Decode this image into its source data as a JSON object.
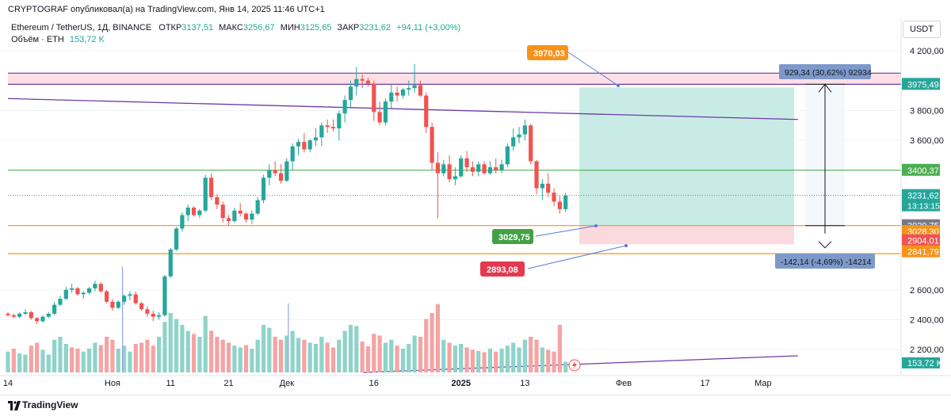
{
  "header": {
    "publisher_line": "CRYPTOGRAF опубликовал(а) на TradingView.com, Янв 14, 2025 11:46 UTC+1"
  },
  "legend": {
    "symbol_line": "Ethereum / TetherUS, 1Д, BINANCE",
    "open_label": "ОТКР",
    "open": "3137,51",
    "high_label": "МАКС",
    "high": "3256,67",
    "low_label": "МИН",
    "low": "3125,65",
    "close_label": "ЗАКР",
    "close": "3231,62",
    "change": "+94,11 (+3,00%)",
    "volume_label": "Объём · ETH",
    "volume": "153,72 K"
  },
  "currency": "USDT",
  "footer": {
    "brand": "TradingView"
  },
  "colors": {
    "up": "#26a69a",
    "down": "#ef5350",
    "up_vol": "#8fd3c9",
    "down_vol": "#f5a3a3",
    "purple": "#6c3ba8",
    "green": "#4caf50",
    "orange": "#f7931a",
    "target_zone": "#c8ebe5",
    "stop_zone": "#fcd9dc",
    "resist_zone": "#fce0e6"
  },
  "chart_data": {
    "type": "candlestick",
    "y_ticks": [
      {
        "v": 4200,
        "t": "4 200,00"
      },
      {
        "v": 3800,
        "t": "3 800,00"
      },
      {
        "v": 3600,
        "t": "3 600,00"
      },
      {
        "v": 2600,
        "t": "2 600,00"
      },
      {
        "v": 2400,
        "t": "2 400,00"
      },
      {
        "v": 2200,
        "t": "2 200,00"
      }
    ],
    "x_ticks": [
      {
        "i": 0,
        "t": "14"
      },
      {
        "i": 18,
        "t": "Ноя"
      },
      {
        "i": 28,
        "t": "11"
      },
      {
        "i": 38,
        "t": "21"
      },
      {
        "i": 48,
        "t": "Дек"
      },
      {
        "i": 63,
        "t": "16"
      },
      {
        "i": 78,
        "t": "2025"
      },
      {
        "i": 89,
        "t": "13"
      },
      {
        "i": 106,
        "t": "Фев"
      },
      {
        "i": 120,
        "t": "17"
      },
      {
        "i": 130,
        "t": "Мар"
      }
    ],
    "candles": [
      [
        2440,
        2450,
        2420,
        2430
      ],
      [
        2430,
        2440,
        2410,
        2420
      ],
      [
        2420,
        2450,
        2410,
        2440
      ],
      [
        2440,
        2470,
        2430,
        2450
      ],
      [
        2450,
        2460,
        2400,
        2410
      ],
      [
        2410,
        2420,
        2370,
        2390
      ],
      [
        2390,
        2430,
        2380,
        2420
      ],
      [
        2420,
        2450,
        2410,
        2440
      ],
      [
        2440,
        2520,
        2430,
        2500
      ],
      [
        2500,
        2560,
        2490,
        2540
      ],
      [
        2540,
        2620,
        2530,
        2600
      ],
      [
        2600,
        2640,
        2580,
        2610
      ],
      [
        2610,
        2620,
        2560,
        2570
      ],
      [
        2570,
        2590,
        2540,
        2580
      ],
      [
        2580,
        2620,
        2570,
        2610
      ],
      [
        2610,
        2660,
        2590,
        2640
      ],
      [
        2640,
        2650,
        2580,
        2590
      ],
      [
        2590,
        2600,
        2510,
        2520
      ],
      [
        2520,
        2540,
        2460,
        2480
      ],
      [
        2480,
        2530,
        2470,
        2520
      ],
      [
        2520,
        2570,
        2500,
        2560
      ],
      [
        2560,
        2590,
        2530,
        2570
      ],
      [
        2570,
        2590,
        2500,
        2510
      ],
      [
        2510,
        2520,
        2460,
        2470
      ],
      [
        2470,
        2490,
        2420,
        2440
      ],
      [
        2440,
        2460,
        2390,
        2420
      ],
      [
        2420,
        2450,
        2400,
        2430
      ],
      [
        2430,
        2700,
        2420,
        2690
      ],
      [
        2690,
        2880,
        2680,
        2870
      ],
      [
        2870,
        3020,
        2860,
        3010
      ],
      [
        3010,
        3120,
        2990,
        3100
      ],
      [
        3100,
        3170,
        3060,
        3150
      ],
      [
        3150,
        3160,
        3090,
        3100
      ],
      [
        3100,
        3140,
        3080,
        3130
      ],
      [
        3130,
        3370,
        3120,
        3350
      ],
      [
        3350,
        3380,
        3200,
        3220
      ],
      [
        3220,
        3240,
        3140,
        3170
      ],
      [
        3170,
        3190,
        3050,
        3080
      ],
      [
        3080,
        3100,
        3030,
        3060
      ],
      [
        3060,
        3150,
        3050,
        3130
      ],
      [
        3130,
        3180,
        3090,
        3110
      ],
      [
        3110,
        3120,
        3050,
        3070
      ],
      [
        3070,
        3130,
        3040,
        3110
      ],
      [
        3110,
        3220,
        3100,
        3200
      ],
      [
        3200,
        3370,
        3180,
        3350
      ],
      [
        3350,
        3440,
        3300,
        3400
      ],
      [
        3400,
        3460,
        3360,
        3380
      ],
      [
        3380,
        3440,
        3310,
        3330
      ],
      [
        3330,
        3480,
        3320,
        3460
      ],
      [
        3460,
        3580,
        3400,
        3560
      ],
      [
        3560,
        3610,
        3500,
        3590
      ],
      [
        3590,
        3650,
        3520,
        3540
      ],
      [
        3540,
        3610,
        3520,
        3600
      ],
      [
        3600,
        3680,
        3560,
        3620
      ],
      [
        3620,
        3720,
        3560,
        3700
      ],
      [
        3700,
        3740,
        3650,
        3690
      ],
      [
        3690,
        3740,
        3660,
        3680
      ],
      [
        3680,
        3800,
        3600,
        3780
      ],
      [
        3780,
        3900,
        3720,
        3870
      ],
      [
        3870,
        4000,
        3820,
        3960
      ],
      [
        3960,
        4090,
        3900,
        4010
      ],
      [
        4010,
        4040,
        3950,
        4000
      ],
      [
        4000,
        4020,
        3960,
        3980
      ],
      [
        3980,
        4000,
        3730,
        3790
      ],
      [
        3790,
        3860,
        3700,
        3720
      ],
      [
        3720,
        3880,
        3700,
        3860
      ],
      [
        3860,
        3980,
        3810,
        3920
      ],
      [
        3920,
        3960,
        3860,
        3900
      ],
      [
        3900,
        3950,
        3880,
        3940
      ],
      [
        3940,
        4000,
        3900,
        3950
      ],
      [
        3950,
        4110,
        3920,
        3970
      ],
      [
        3970,
        4000,
        3890,
        3900
      ],
      [
        3900,
        3920,
        3650,
        3690
      ],
      [
        3690,
        3720,
        3400,
        3450
      ],
      [
        3450,
        3520,
        3080,
        3380
      ],
      [
        3380,
        3470,
        3360,
        3440
      ],
      [
        3440,
        3500,
        3320,
        3340
      ],
      [
        3340,
        3420,
        3300,
        3360
      ],
      [
        3360,
        3500,
        3350,
        3480
      ],
      [
        3480,
        3530,
        3390,
        3420
      ],
      [
        3420,
        3460,
        3360,
        3390
      ],
      [
        3390,
        3460,
        3360,
        3440
      ],
      [
        3440,
        3460,
        3370,
        3380
      ],
      [
        3380,
        3460,
        3370,
        3420
      ],
      [
        3420,
        3480,
        3380,
        3400
      ],
      [
        3400,
        3470,
        3380,
        3440
      ],
      [
        3440,
        3580,
        3420,
        3560
      ],
      [
        3560,
        3680,
        3530,
        3620
      ],
      [
        3620,
        3690,
        3580,
        3640
      ],
      [
        3640,
        3740,
        3600,
        3700
      ],
      [
        3700,
        3710,
        3440,
        3460
      ],
      [
        3460,
        3470,
        3240,
        3280
      ],
      [
        3280,
        3340,
        3200,
        3310
      ],
      [
        3310,
        3380,
        3220,
        3250
      ],
      [
        3250,
        3280,
        3160,
        3190
      ],
      [
        3190,
        3230,
        3110,
        3140
      ],
      [
        3140,
        3250,
        3120,
        3230
      ]
    ],
    "volume": [
      [
        0.35,
        1
      ],
      [
        0.4,
        0
      ],
      [
        0.32,
        1
      ],
      [
        0.3,
        1
      ],
      [
        0.45,
        0
      ],
      [
        0.5,
        0
      ],
      [
        0.38,
        1
      ],
      [
        0.3,
        1
      ],
      [
        0.55,
        1
      ],
      [
        0.6,
        1
      ],
      [
        0.48,
        1
      ],
      [
        0.42,
        0
      ],
      [
        0.4,
        0
      ],
      [
        0.35,
        1
      ],
      [
        0.4,
        1
      ],
      [
        0.5,
        1
      ],
      [
        0.46,
        0
      ],
      [
        0.6,
        0
      ],
      [
        0.55,
        0
      ],
      [
        0.4,
        1
      ],
      [
        0.45,
        1
      ],
      [
        0.35,
        1
      ],
      [
        0.48,
        0
      ],
      [
        0.5,
        0
      ],
      [
        0.55,
        0
      ],
      [
        0.45,
        0
      ],
      [
        0.6,
        1
      ],
      [
        0.85,
        1
      ],
      [
        1.0,
        1
      ],
      [
        0.9,
        1
      ],
      [
        0.8,
        1
      ],
      [
        0.7,
        1
      ],
      [
        0.65,
        0
      ],
      [
        0.6,
        1
      ],
      [
        0.95,
        1
      ],
      [
        0.7,
        0
      ],
      [
        0.6,
        0
      ],
      [
        0.55,
        0
      ],
      [
        0.5,
        0
      ],
      [
        0.45,
        1
      ],
      [
        0.42,
        1
      ],
      [
        0.46,
        0
      ],
      [
        0.4,
        1
      ],
      [
        0.55,
        1
      ],
      [
        0.8,
        1
      ],
      [
        0.75,
        1
      ],
      [
        0.6,
        0
      ],
      [
        0.55,
        0
      ],
      [
        0.62,
        1
      ],
      [
        0.7,
        1
      ],
      [
        0.58,
        1
      ],
      [
        0.55,
        0
      ],
      [
        0.5,
        1
      ],
      [
        0.48,
        1
      ],
      [
        0.6,
        1
      ],
      [
        0.5,
        0
      ],
      [
        0.42,
        0
      ],
      [
        0.55,
        1
      ],
      [
        0.7,
        1
      ],
      [
        0.8,
        1
      ],
      [
        0.78,
        1
      ],
      [
        0.52,
        0
      ],
      [
        0.44,
        0
      ],
      [
        0.65,
        0
      ],
      [
        0.62,
        0
      ],
      [
        0.5,
        1
      ],
      [
        0.55,
        1
      ],
      [
        0.45,
        0
      ],
      [
        0.4,
        1
      ],
      [
        0.48,
        1
      ],
      [
        0.62,
        1
      ],
      [
        0.6,
        0
      ],
      [
        0.9,
        0
      ],
      [
        1.0,
        0
      ],
      [
        1.15,
        0
      ],
      [
        0.55,
        1
      ],
      [
        0.5,
        0
      ],
      [
        0.45,
        1
      ],
      [
        0.48,
        1
      ],
      [
        0.42,
        0
      ],
      [
        0.38,
        0
      ],
      [
        0.36,
        1
      ],
      [
        0.34,
        0
      ],
      [
        0.4,
        1
      ],
      [
        0.35,
        0
      ],
      [
        0.4,
        1
      ],
      [
        0.45,
        1
      ],
      [
        0.5,
        1
      ],
      [
        0.42,
        1
      ],
      [
        0.55,
        1
      ],
      [
        0.6,
        0
      ],
      [
        0.55,
        0
      ],
      [
        0.42,
        1
      ],
      [
        0.38,
        0
      ],
      [
        0.35,
        0
      ],
      [
        0.8,
        0
      ],
      [
        0.18,
        1
      ]
    ],
    "levels": {
      "resistance_zone": [
        3975.49,
        4050
      ],
      "trendline_upper": {
        "x1": 0,
        "y1": 3880,
        "x2": 136,
        "y2": 3740
      },
      "support_green": 3400.37,
      "entry": 3029.75,
      "stop_orange": 2841.79,
      "trendline_lower": {
        "x1": 53,
        "y1": 2160,
        "x2": 136,
        "y2": 2250
      }
    },
    "price_labels": [
      {
        "v": 3975.49,
        "t": "3975,49",
        "bg": "#26a69a",
        "fg": "#ffffff"
      },
      {
        "v": 3400.37,
        "t": "3400,37",
        "bg": "#4caf50",
        "fg": "#ffffff"
      },
      {
        "v": 3029.75,
        "t": "3029,75",
        "bg": "#787b86",
        "fg": "#ffffff"
      },
      {
        "v": 2990.0,
        "t": "3028,30",
        "bg": "#f7931a",
        "fg": "#ffffff"
      },
      {
        "v": 2930.0,
        "t": "2904,01",
        "bg": "#ef5350",
        "fg": "#ffffff"
      },
      {
        "v": 2855.0,
        "t": "2841,79",
        "bg": "#f7931a",
        "fg": "#ffffff"
      }
    ],
    "last_price": {
      "t": "3231,62",
      "countdown": "13:13:15"
    },
    "volume_label": "153,72 K",
    "callouts": [
      {
        "t": "3970,03",
        "bg": "#f7931a"
      },
      {
        "t": "3029,75",
        "bg": "#43a047"
      },
      {
        "t": "2893,08",
        "bg": "#e53950"
      }
    ],
    "measure_top": "929,34 (30,62%) 92934",
    "measure_bottom": "-142,14 (-4,69%) -14214"
  }
}
